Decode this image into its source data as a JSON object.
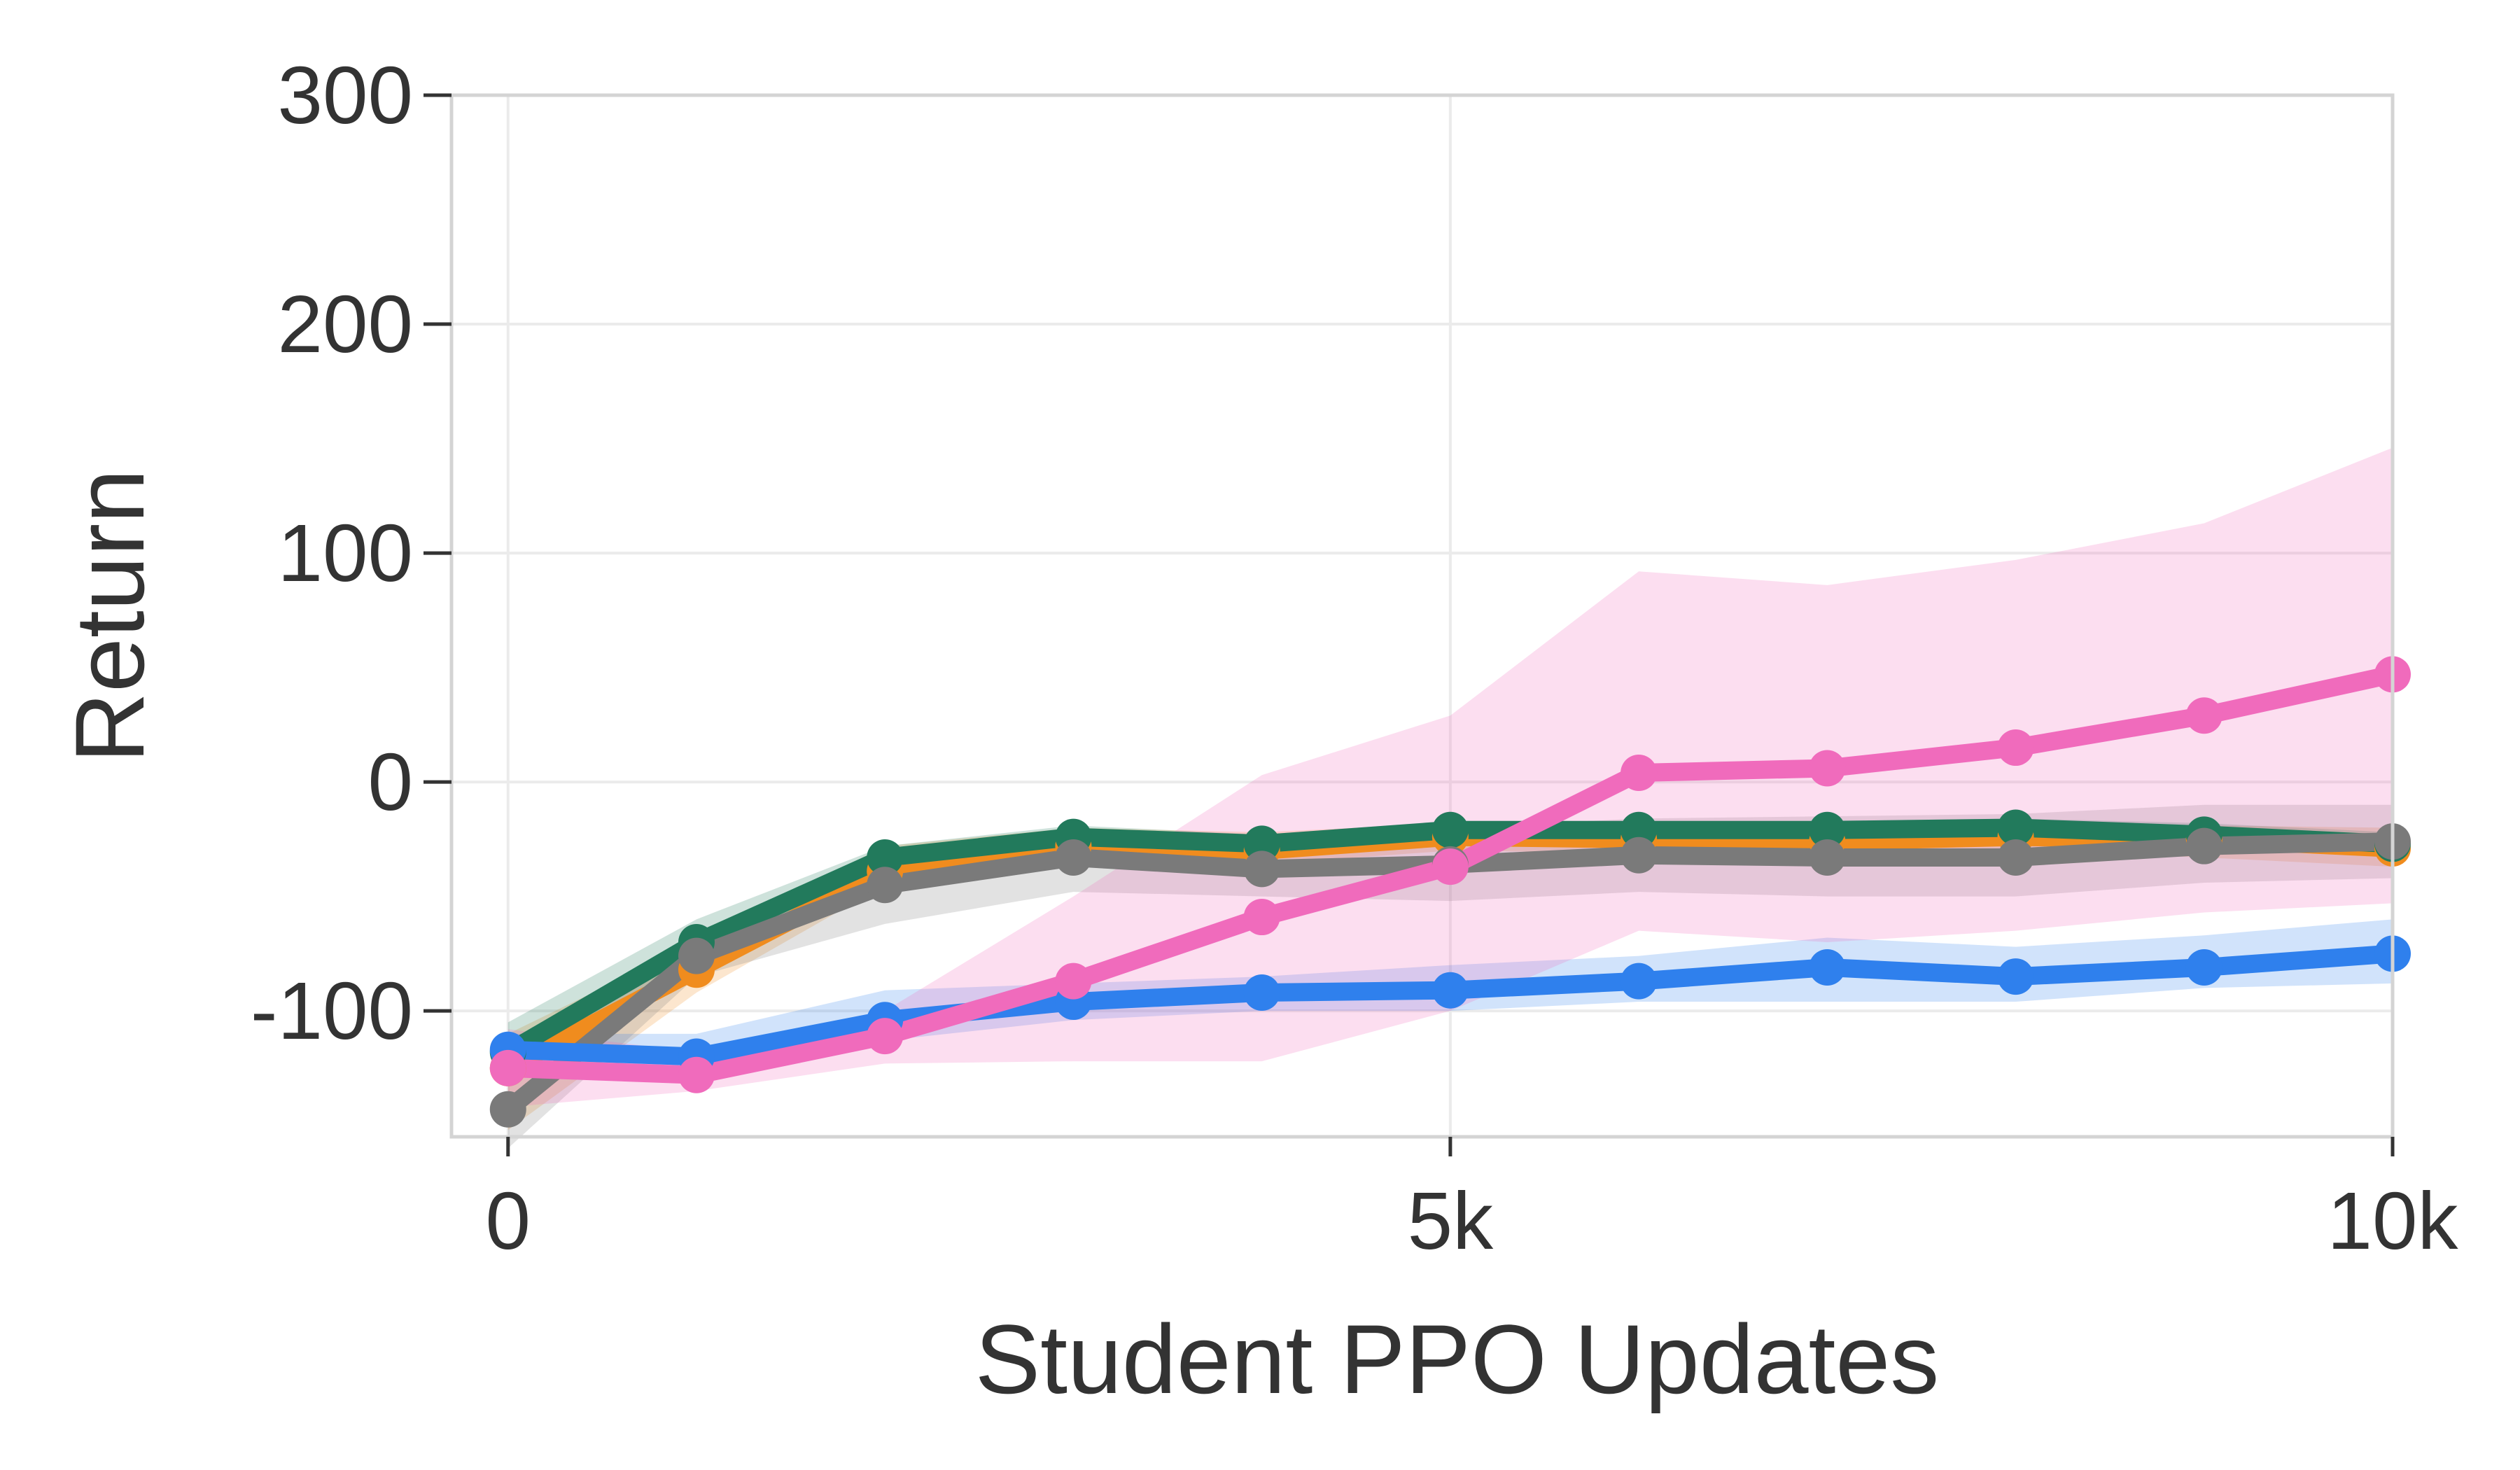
{
  "chart_data": {
    "type": "line",
    "title": "",
    "xlabel": "Student PPO Updates",
    "ylabel": "Return",
    "xlim": [
      -300,
      10000
    ],
    "ylim": [
      -155,
      300
    ],
    "xticks": [
      0,
      5000,
      10000
    ],
    "xtick_labels": [
      "0",
      "5k",
      "10k"
    ],
    "yticks": [
      -100,
      0,
      100,
      200,
      300
    ],
    "ytick_labels": [
      "-100",
      "0",
      "100",
      "200",
      "300"
    ],
    "grid": true,
    "legend": "none",
    "x": [
      0,
      1000,
      2000,
      3000,
      4000,
      5000,
      6000,
      7000,
      8000,
      9000,
      10000
    ],
    "series": [
      {
        "color": "#f08c1e",
        "values": [
          -125,
          -82,
          -39,
          -28,
          -30,
          -24,
          -25,
          -26,
          -24,
          -25,
          -29
        ],
        "lower": [
          -152,
          -92,
          -45,
          -34,
          -36,
          -30,
          -31,
          -32,
          -30,
          -33,
          -37
        ],
        "upper": [
          -110,
          -70,
          -28,
          -20,
          -22,
          -18,
          -19,
          -20,
          -18,
          -19,
          -20
        ]
      },
      {
        "color": "#227a5c",
        "values": [
          -118,
          -70,
          -33,
          -24,
          -27,
          -21,
          -21,
          -21,
          -20,
          -23,
          -27
        ],
        "lower": [
          -130,
          -78,
          -38,
          -28,
          -32,
          -26,
          -26,
          -26,
          -25,
          -28,
          -32
        ],
        "upper": [
          -105,
          -60,
          -28,
          -19,
          -23,
          -17,
          -17,
          -17,
          -16,
          -18,
          -22
        ]
      },
      {
        "color": "#7a7a7a",
        "values": [
          -143,
          -76,
          -45,
          -33,
          -38,
          -36,
          -32,
          -33,
          -33,
          -28,
          -26
        ],
        "lower": [
          -160,
          -85,
          -62,
          -48,
          -50,
          -52,
          -48,
          -50,
          -50,
          -44,
          -42
        ],
        "upper": [
          -126,
          -68,
          -30,
          -24,
          -24,
          -20,
          -16,
          -15,
          -14,
          -10,
          -10
        ]
      },
      {
        "color": "#2f80ed",
        "values": [
          -117,
          -120,
          -104,
          -96,
          -92,
          -91,
          -87,
          -81,
          -85,
          -81,
          -75
        ],
        "lower": [
          -128,
          -128,
          -113,
          -104,
          -100,
          -100,
          -96,
          -96,
          -96,
          -90,
          -88
        ],
        "upper": [
          -110,
          -110,
          -91,
          -88,
          -85,
          -80,
          -76,
          -68,
          -72,
          -67,
          -60
        ]
      },
      {
        "color": "#f06bbc",
        "values": [
          -125,
          -128,
          -111,
          -87,
          -59,
          -37,
          4,
          6,
          15,
          29,
          47
        ],
        "lower": [
          -142,
          -135,
          -123,
          -122,
          -122,
          -100,
          -65,
          -70,
          -65,
          -57,
          -53
        ],
        "upper": [
          -108,
          -118,
          -100,
          -50,
          3,
          29,
          92,
          86,
          97,
          113,
          146
        ]
      }
    ]
  }
}
